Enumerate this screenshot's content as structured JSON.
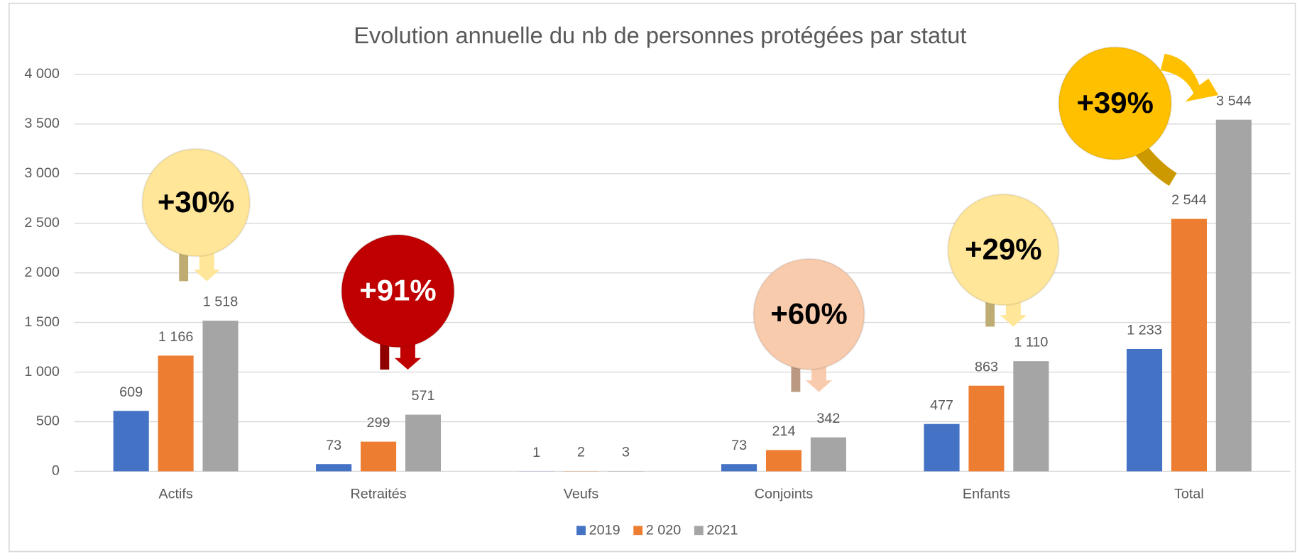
{
  "chart_data": {
    "type": "bar",
    "title": "Evolution annuelle du nb de personnes protégées par statut",
    "categories": [
      "Actifs",
      "Retraités",
      "Veufs",
      "Conjoints",
      "Enfants",
      "Total"
    ],
    "series": [
      {
        "name": "2019",
        "color": "#4472c4",
        "values": [
          609,
          73,
          1,
          73,
          477,
          1233
        ],
        "value_labels": [
          "609",
          "73",
          "1",
          "73",
          "477",
          "1 233"
        ]
      },
      {
        "name": "2 020",
        "color": "#ed7d31",
        "values": [
          1166,
          299,
          2,
          214,
          863,
          2544
        ],
        "value_labels": [
          "1 166",
          "299",
          "2",
          "214",
          "863",
          "2 544"
        ]
      },
      {
        "name": "2021",
        "color": "#a5a5a5",
        "values": [
          1518,
          571,
          3,
          342,
          1110,
          3544
        ],
        "value_labels": [
          "1 518",
          "571",
          "3",
          "342",
          "1 110",
          "3 544"
        ]
      }
    ],
    "ylim": [
      0,
      4000
    ],
    "yticks": [
      0,
      500,
      {
        "value": 1000,
        "label": "1 000"
      },
      {
        "value": 1500,
        "label": "1 500"
      },
      {
        "value": 2000,
        "label": "2 000"
      },
      {
        "value": 2500,
        "label": "2 500"
      },
      {
        "value": 3000,
        "label": "3 000"
      },
      {
        "value": 3500,
        "label": "3 500"
      },
      {
        "value": 4000,
        "label": "4 000"
      }
    ],
    "grid": true,
    "legend": "bottom",
    "annotations": [
      {
        "text": "+30%",
        "color": "#ffe699",
        "text_color": "#000000"
      },
      {
        "text": "+91%",
        "color": "#c00000",
        "text_color": "#ffffff"
      },
      {
        "text": "+60%",
        "color": "#f8cbad",
        "text_color": "#000000"
      },
      {
        "text": "+29%",
        "color": "#ffe699",
        "text_color": "#000000"
      },
      {
        "text": "+39%",
        "color": "#ffc000",
        "text_color": "#000000"
      }
    ]
  }
}
